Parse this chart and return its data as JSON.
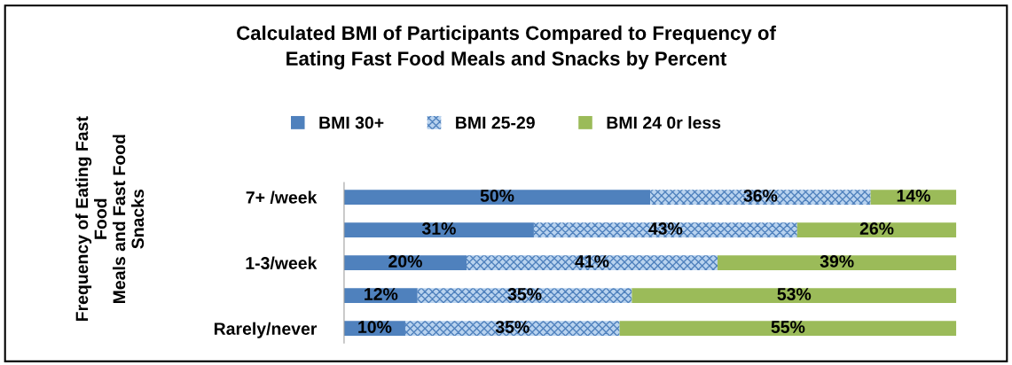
{
  "chart_data": {
    "type": "bar",
    "orientation": "horizontal",
    "stacked": true,
    "title": "Calculated BMI of Participants Compared to Frequency of\nEating Fast Food Meals and Snacks by Percent",
    "ylabel": "Frequency of Eating Fast\nFood\nMeals and Fast Food\nSnacks",
    "categories": [
      "7+ /week",
      null,
      "1-3/week",
      null,
      "Rarely/never"
    ],
    "series": [
      {
        "name": "BMI 30+",
        "color": "#4f81bd",
        "values": [
          50,
          31,
          20,
          12,
          10
        ],
        "value_labels": [
          "50%",
          "31%",
          "20%",
          "12%",
          "10%"
        ]
      },
      {
        "name": "BMI 25-29",
        "color": "#b9d3ef",
        "values": [
          36,
          43,
          41,
          35,
          35
        ],
        "value_labels": [
          "36%",
          "43%",
          "41%",
          "35%",
          "35%"
        ]
      },
      {
        "name": "BMI 24 0r less",
        "color": "#9bbb59",
        "values": [
          14,
          26,
          39,
          53,
          55
        ],
        "value_labels": [
          "14%",
          "26%",
          "39%",
          "53%",
          "55%"
        ]
      }
    ],
    "legend": "top",
    "grid": false
  }
}
